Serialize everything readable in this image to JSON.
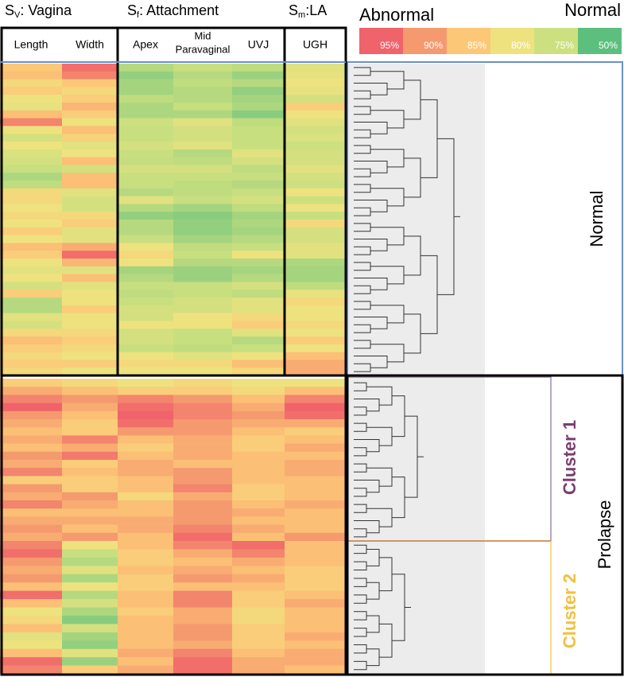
{
  "chart_data": {
    "type": "heatmap",
    "groups": [
      {
        "base": "S",
        "sub": "V",
        "rest": ": Vagina",
        "columns": [
          {
            "label": "Length"
          },
          {
            "label": "Width"
          }
        ]
      },
      {
        "base": "S",
        "sub": "f",
        "rest": ": Attachment",
        "columns": [
          {
            "label": "Apex"
          },
          {
            "label": [
              "Mid",
              "Paravaginal"
            ]
          },
          {
            "label": "UVJ"
          }
        ]
      },
      {
        "base": "S",
        "sub": "m",
        "rest": ":LA",
        "columns": [
          {
            "label": "UGH"
          }
        ]
      }
    ],
    "legend": {
      "low_label": "Abnormal",
      "high_label": "Normal",
      "stops": [
        {
          "value": 95,
          "label": "95%",
          "color": "#f0636a"
        },
        {
          "value": 90,
          "label": "90%",
          "color": "#f59a6f"
        },
        {
          "value": 85,
          "label": "85%",
          "color": "#fcc877"
        },
        {
          "value": 80,
          "label": "80%",
          "color": "#eee27f"
        },
        {
          "value": 75,
          "label": "75%",
          "color": "#cde07f"
        },
        {
          "value": 50,
          "label": "50%",
          "color": "#5cbf7d"
        }
      ]
    },
    "super_label": "Prolapse",
    "sections": [
      {
        "name": "Normal",
        "color": "#000000",
        "values": [
          [
            85,
            94,
            70,
            74,
            72,
            78
          ],
          [
            86,
            92,
            62,
            70,
            64,
            79
          ],
          [
            82,
            85,
            66,
            72,
            70,
            80
          ],
          [
            84,
            82,
            66,
            70,
            62,
            79
          ],
          [
            80,
            84,
            72,
            70,
            66,
            76
          ],
          [
            79,
            87,
            68,
            74,
            68,
            84
          ],
          [
            86,
            84,
            68,
            68,
            60,
            80
          ],
          [
            92,
            80,
            75,
            78,
            72,
            78
          ],
          [
            80,
            86,
            74,
            76,
            74,
            76
          ],
          [
            76,
            83,
            74,
            76,
            74,
            77
          ],
          [
            80,
            78,
            76,
            78,
            74,
            75
          ],
          [
            77,
            80,
            74,
            70,
            78,
            76
          ],
          [
            76,
            86,
            73,
            72,
            76,
            76
          ],
          [
            74,
            76,
            76,
            76,
            72,
            78
          ],
          [
            68,
            86,
            74,
            74,
            74,
            76
          ],
          [
            72,
            86,
            74,
            72,
            70,
            75
          ],
          [
            82,
            78,
            70,
            72,
            74,
            80
          ],
          [
            82,
            76,
            78,
            74,
            76,
            75
          ],
          [
            80,
            76,
            70,
            66,
            72,
            80
          ],
          [
            82,
            82,
            62,
            60,
            66,
            74
          ],
          [
            80,
            84,
            70,
            62,
            68,
            82
          ],
          [
            84,
            78,
            70,
            62,
            66,
            76
          ],
          [
            80,
            78,
            74,
            66,
            70,
            76
          ],
          [
            86,
            88,
            80,
            72,
            74,
            78
          ],
          [
            84,
            94,
            82,
            74,
            80,
            78
          ],
          [
            80,
            87,
            80,
            70,
            70,
            68
          ],
          [
            78,
            78,
            66,
            64,
            66,
            66
          ],
          [
            80,
            86,
            70,
            64,
            70,
            66
          ],
          [
            76,
            78,
            74,
            74,
            76,
            72
          ],
          [
            84,
            80,
            72,
            74,
            72,
            79
          ],
          [
            70,
            80,
            74,
            76,
            78,
            82
          ],
          [
            70,
            84,
            76,
            76,
            78,
            80
          ],
          [
            78,
            80,
            76,
            80,
            82,
            80
          ],
          [
            76,
            80,
            80,
            80,
            84,
            82
          ],
          [
            82,
            82,
            76,
            74,
            78,
            80
          ],
          [
            86,
            84,
            76,
            74,
            70,
            84
          ],
          [
            84,
            82,
            74,
            72,
            74,
            80
          ],
          [
            82,
            80,
            80,
            78,
            80,
            86
          ],
          [
            84,
            84,
            82,
            82,
            86,
            88
          ],
          [
            82,
            80,
            80,
            80,
            82,
            88
          ]
        ]
      },
      {
        "name": "Cluster 1",
        "color": "#7b3f6e",
        "values": [
          [
            84,
            82,
            80,
            82,
            80,
            80
          ],
          [
            88,
            86,
            84,
            84,
            82,
            86
          ],
          [
            92,
            90,
            92,
            90,
            86,
            92
          ],
          [
            95,
            88,
            94,
            92,
            88,
            95
          ],
          [
            90,
            86,
            95,
            92,
            90,
            94
          ],
          [
            88,
            84,
            94,
            90,
            88,
            88
          ],
          [
            86,
            84,
            90,
            90,
            86,
            84
          ],
          [
            88,
            92,
            86,
            88,
            84,
            86
          ],
          [
            86,
            88,
            84,
            88,
            84,
            88
          ],
          [
            90,
            93,
            86,
            88,
            86,
            86
          ],
          [
            88,
            84,
            88,
            86,
            86,
            88
          ],
          [
            92,
            86,
            88,
            90,
            86,
            88
          ],
          [
            84,
            84,
            86,
            90,
            86,
            86
          ],
          [
            90,
            84,
            86,
            92,
            84,
            86
          ],
          [
            88,
            90,
            82,
            88,
            84,
            86
          ],
          [
            92,
            88,
            86,
            90,
            86,
            88
          ],
          [
            86,
            86,
            86,
            90,
            88,
            86
          ],
          [
            88,
            88,
            88,
            90,
            86,
            86
          ],
          [
            90,
            86,
            88,
            92,
            88,
            86
          ],
          [
            88,
            90,
            86,
            94,
            86,
            90
          ]
        ]
      },
      {
        "name": "Cluster 2",
        "color": "#f0c040",
        "values": [
          [
            92,
            80,
            86,
            92,
            94,
            86
          ],
          [
            94,
            74,
            84,
            88,
            92,
            86
          ],
          [
            90,
            70,
            84,
            86,
            88,
            86
          ],
          [
            88,
            78,
            86,
            88,
            86,
            84
          ],
          [
            90,
            68,
            84,
            90,
            88,
            84
          ],
          [
            86,
            80,
            84,
            86,
            86,
            84
          ],
          [
            94,
            70,
            86,
            92,
            84,
            86
          ],
          [
            86,
            76,
            86,
            92,
            84,
            88
          ],
          [
            80,
            68,
            84,
            88,
            82,
            86
          ],
          [
            82,
            60,
            86,
            88,
            82,
            86
          ],
          [
            86,
            76,
            86,
            90,
            84,
            86
          ],
          [
            78,
            66,
            86,
            90,
            84,
            88
          ],
          [
            80,
            62,
            86,
            88,
            84,
            86
          ],
          [
            86,
            78,
            88,
            92,
            86,
            88
          ],
          [
            94,
            64,
            86,
            94,
            88,
            88
          ],
          [
            92,
            84,
            88,
            94,
            88,
            86
          ]
        ]
      }
    ]
  }
}
